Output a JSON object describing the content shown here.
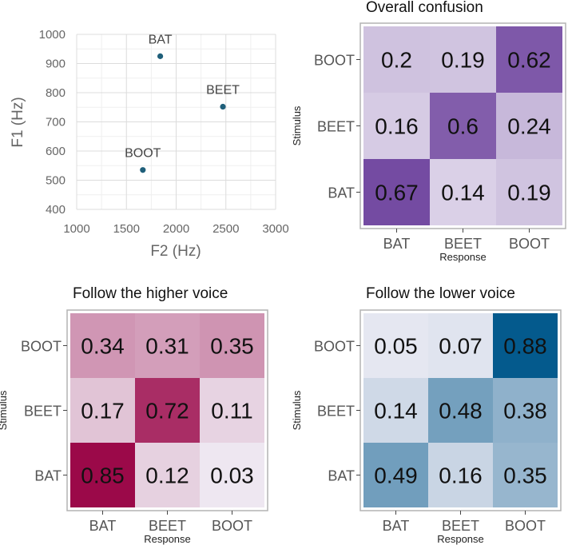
{
  "chart_data": [
    {
      "type": "scatter",
      "title": "",
      "xlabel": "F2 (Hz)",
      "ylabel": "F1 (Hz)",
      "xlim": [
        1000,
        3000
      ],
      "ylim": [
        400,
        1000
      ],
      "xticks": [
        "1000",
        "1500",
        "2000",
        "2500",
        "3000"
      ],
      "yticks": [
        "400",
        "500",
        "600",
        "700",
        "800",
        "900",
        "1000"
      ],
      "grid": true,
      "point_color": "#1f5f7a",
      "points": [
        {
          "label": "BAT",
          "x": 1840,
          "y": 925
        },
        {
          "label": "BEET",
          "x": 2470,
          "y": 752
        },
        {
          "label": "BOOT",
          "x": 1665,
          "y": 535
        }
      ]
    },
    {
      "type": "heatmap",
      "title": "Overall confusion",
      "xlabel": "Response",
      "ylabel": "Stimulus",
      "x_categories": [
        "BAT",
        "BEET",
        "BOOT"
      ],
      "y_categories": [
        "BOOT",
        "BEET",
        "BAT"
      ],
      "values": [
        [
          "0.2",
          "0.19",
          "0.62"
        ],
        [
          "0.16",
          "0.6",
          "0.24"
        ],
        [
          "0.67",
          "0.14",
          "0.19"
        ]
      ],
      "color_low": "#f2f0f7",
      "color_high": "#4a1486"
    },
    {
      "type": "heatmap",
      "title": "Follow the higher voice",
      "xlabel": "Response",
      "ylabel": "Stimulus",
      "x_categories": [
        "BAT",
        "BEET",
        "BOOT"
      ],
      "y_categories": [
        "BOOT",
        "BEET",
        "BAT"
      ],
      "values": [
        [
          "0.34",
          "0.31",
          "0.35"
        ],
        [
          "0.17",
          "0.72",
          "0.11"
        ],
        [
          "0.85",
          "0.12",
          "0.03"
        ]
      ],
      "color_low": "#f1eef6",
      "color_high": "#980043"
    },
    {
      "type": "heatmap",
      "title": "Follow the lower voice",
      "xlabel": "Response",
      "ylabel": "Stimulus",
      "x_categories": [
        "BAT",
        "BEET",
        "BOOT"
      ],
      "y_categories": [
        "BOOT",
        "BEET",
        "BAT"
      ],
      "values": [
        [
          "0.05",
          "0.07",
          "0.88"
        ],
        [
          "0.14",
          "0.48",
          "0.38"
        ],
        [
          "0.49",
          "0.16",
          "0.35"
        ]
      ],
      "color_low": "#f1eef6",
      "color_high": "#045a8d"
    }
  ]
}
